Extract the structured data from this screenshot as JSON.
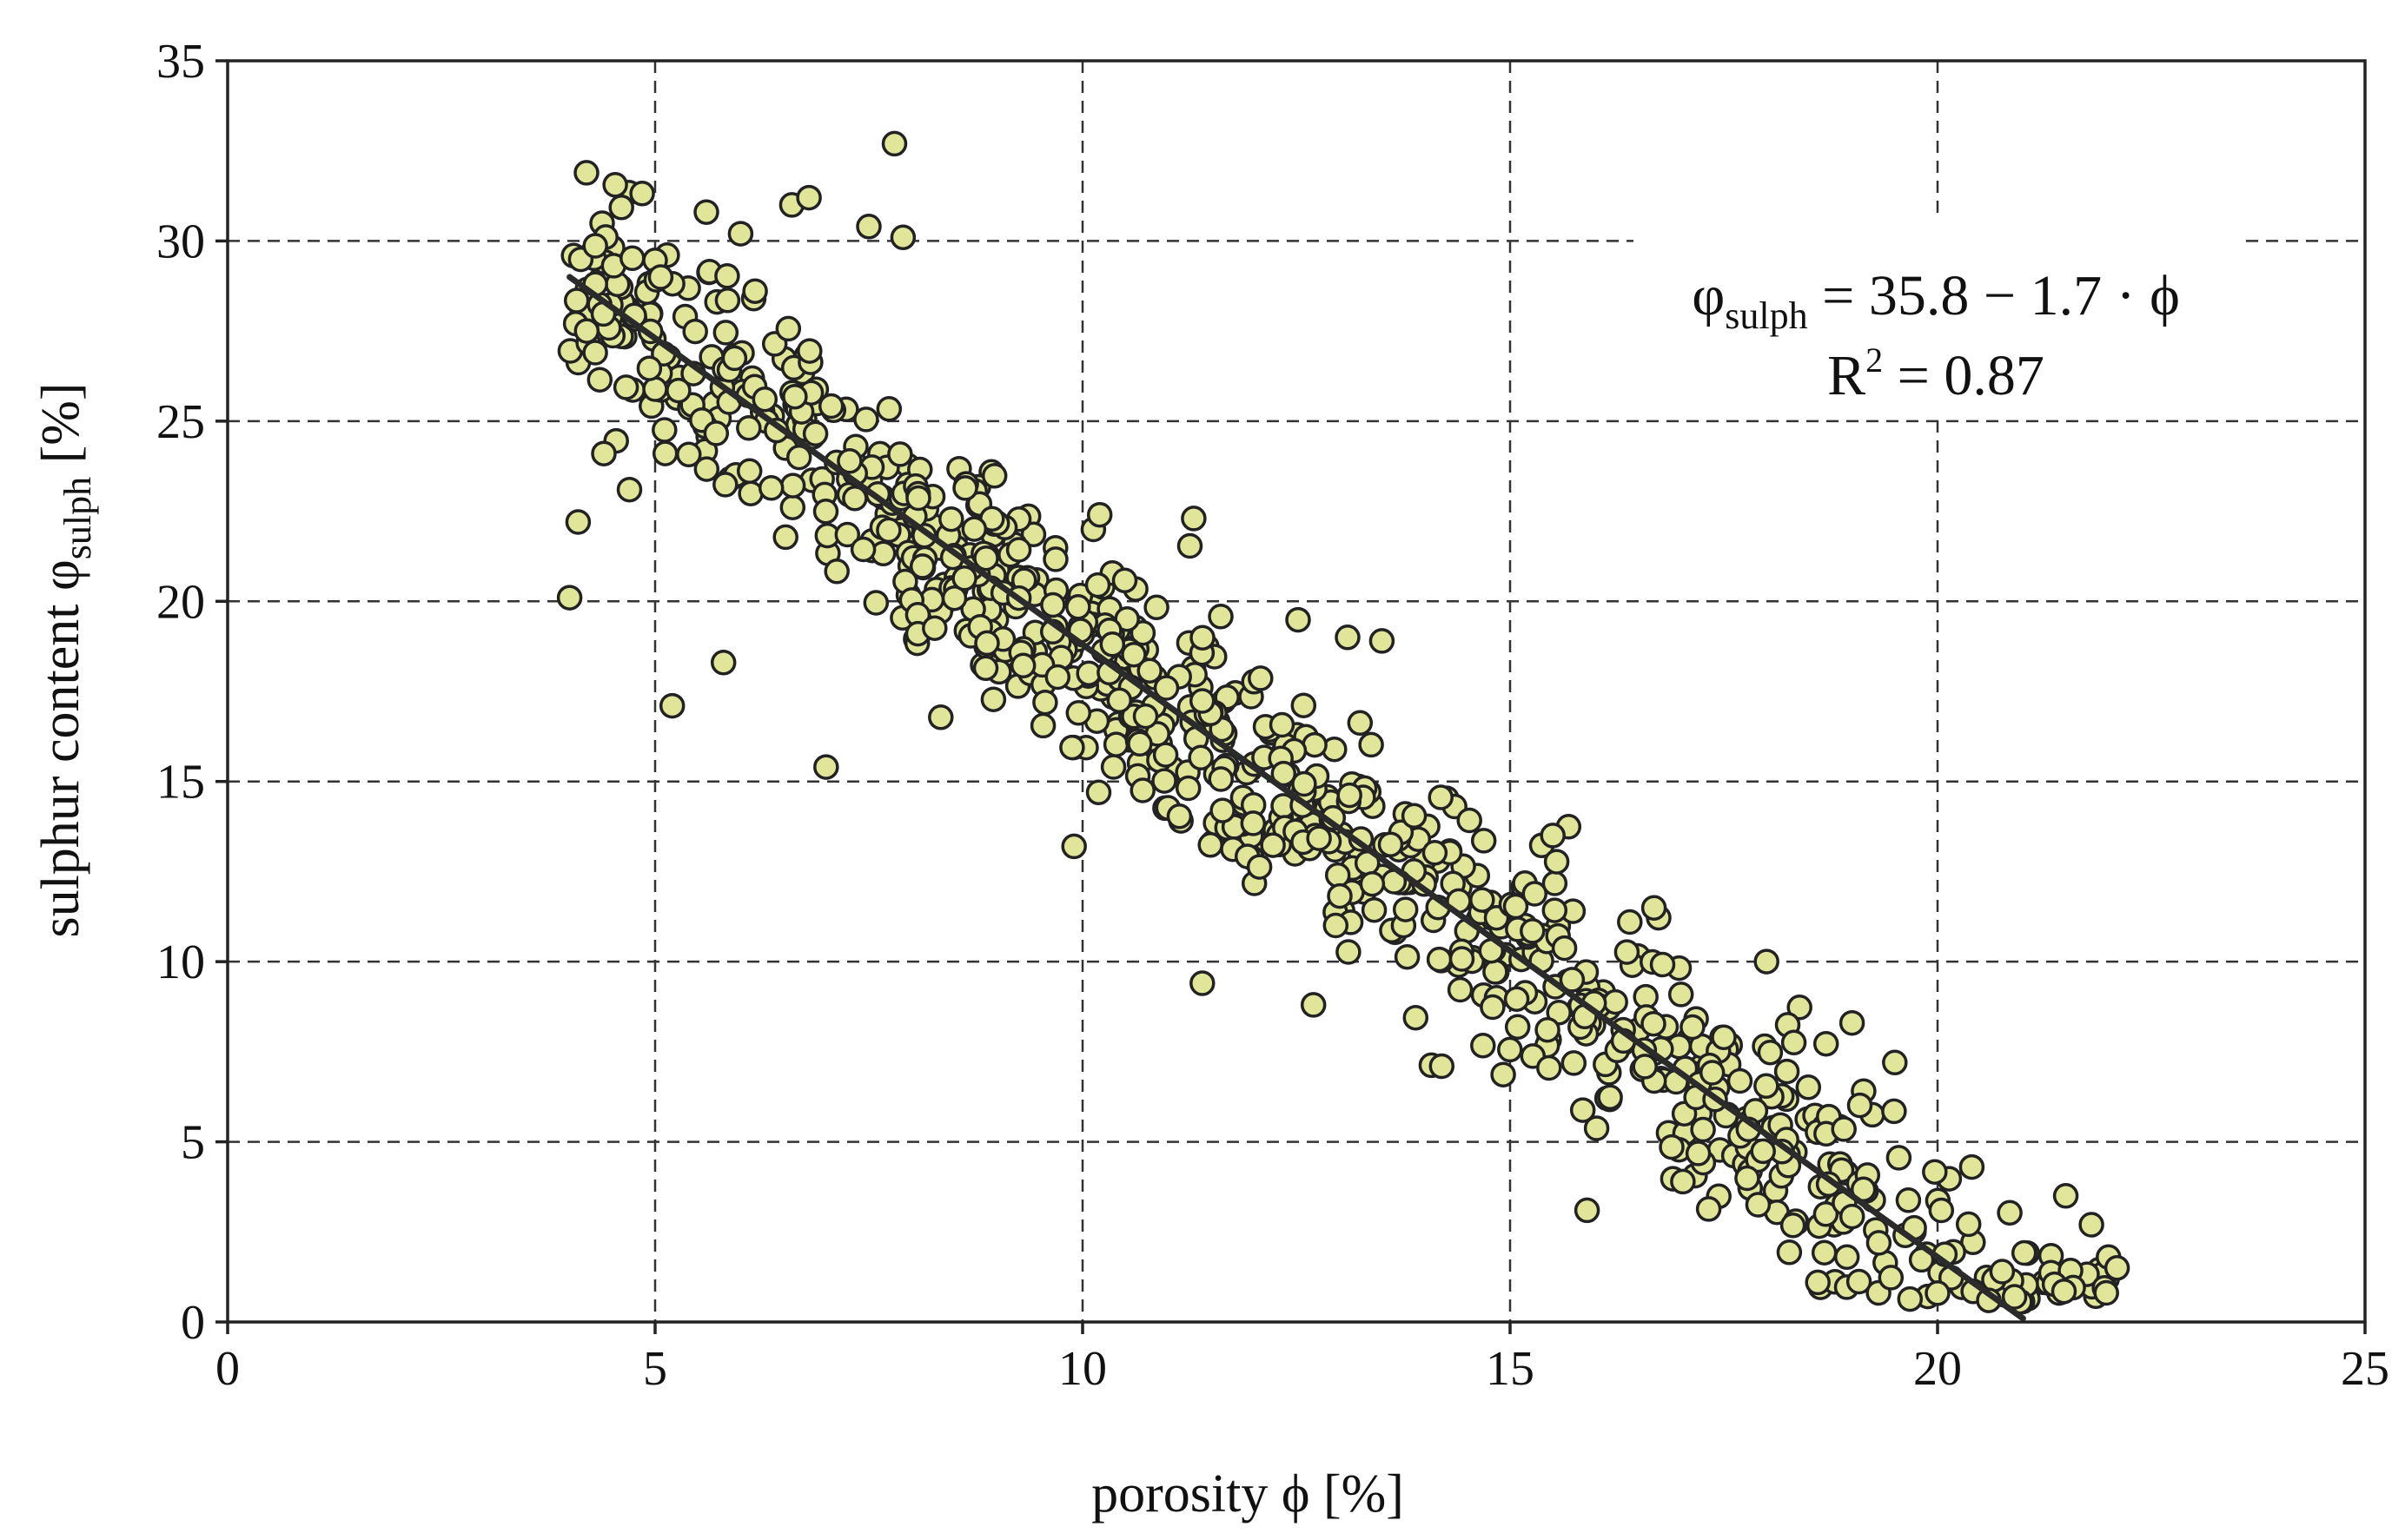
{
  "chart_data": {
    "type": "scatter",
    "title": "",
    "xlabel": "porosity ϕ [%]",
    "ylabel_prefix": "sulphur content φ",
    "ylabel_subscript": "sulph",
    "ylabel_suffix": " [%]",
    "xlim": [
      0,
      25
    ],
    "ylim": [
      0,
      35
    ],
    "x_ticks": [
      0,
      5,
      10,
      15,
      20,
      25
    ],
    "y_ticks": [
      0,
      5,
      10,
      15,
      20,
      25,
      30,
      35
    ],
    "grid": true,
    "fit": {
      "intercept": 35.8,
      "slope": -1.7,
      "x_range": [
        4.0,
        21.0
      ],
      "equation_symbol": "φ",
      "equation_subscript": "sulph",
      "equation_rhs": " = 35.8 − 1.7 · ϕ",
      "r2_label": "R",
      "r2_exponent": "2",
      "r2_value": " = 0.87",
      "legend_position": "top-right"
    },
    "marker_color": "#e0e59a",
    "n_points": 900,
    "noise_sd": 2.6,
    "x_distribution": [
      {
        "from": 4.0,
        "to": 8.0,
        "weight": 0.22
      },
      {
        "from": 8.0,
        "to": 12.0,
        "weight": 0.3
      },
      {
        "from": 12.0,
        "to": 15.0,
        "weight": 0.18
      },
      {
        "from": 15.0,
        "to": 19.0,
        "weight": 0.22
      },
      {
        "from": 19.0,
        "to": 22.0,
        "weight": 0.08
      }
    ],
    "sample_points": [
      [
        4.0,
        20.1
      ],
      [
        4.1,
        22.2
      ],
      [
        4.2,
        27.5
      ],
      [
        4.3,
        26.9
      ],
      [
        4.4,
        24.1
      ],
      [
        4.7,
        23.1
      ],
      [
        5.6,
        30.8
      ],
      [
        6.0,
        30.2
      ],
      [
        6.6,
        31.0
      ],
      [
        6.8,
        31.2
      ],
      [
        7.5,
        30.4
      ],
      [
        7.8,
        32.7
      ],
      [
        7.9,
        30.1
      ],
      [
        5.2,
        17.1
      ],
      [
        5.8,
        18.3
      ],
      [
        7.0,
        15.4
      ],
      [
        9.9,
        13.2
      ],
      [
        10.2,
        22.4
      ],
      [
        11.3,
        22.3
      ],
      [
        11.4,
        9.4
      ],
      [
        13.1,
        19.0
      ],
      [
        13.5,
        18.9
      ],
      [
        12.7,
        8.8
      ],
      [
        15.5,
        13.5
      ],
      [
        14.2,
        7.1
      ],
      [
        16.4,
        11.1
      ],
      [
        18.0,
        10.0
      ],
      [
        19.0,
        8.3
      ],
      [
        19.5,
        7.2
      ],
      [
        15.9,
        3.1
      ],
      [
        17.5,
        7.9
      ],
      [
        18.6,
        1.1
      ],
      [
        20.0,
        0.8
      ],
      [
        20.4,
        4.3
      ],
      [
        20.6,
        0.6
      ],
      [
        20.9,
        0.7
      ],
      [
        21.5,
        3.5
      ],
      [
        21.8,
        2.7
      ],
      [
        22.0,
        1.8
      ],
      [
        22.1,
        1.5
      ]
    ]
  }
}
